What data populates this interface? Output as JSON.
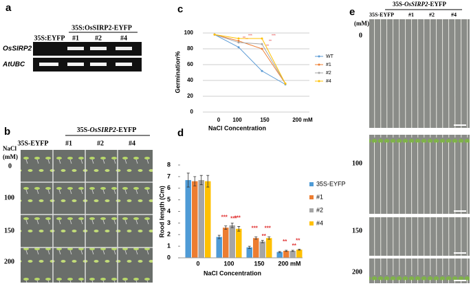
{
  "panels": {
    "a": {
      "label": "a",
      "header": "35S:OsSIRP2-EYFP",
      "lanes": [
        "35S:EYFP",
        "#1",
        "#2",
        "#4"
      ],
      "rows": [
        "OsSIRP2",
        "AtUBC"
      ]
    },
    "b": {
      "label": "b",
      "header": [
        "35S-",
        "OsSIRP2",
        "-EYFP"
      ],
      "columns": [
        "35S-EYFP",
        "#1",
        "#2",
        "#4"
      ],
      "unit": [
        "NaCl",
        "(mM)"
      ],
      "rows": [
        "0",
        "100",
        "150",
        "200"
      ]
    },
    "e": {
      "label": "e",
      "header": [
        "35S-",
        "OsSIRP2",
        "-EYFP"
      ],
      "columns": [
        "35S-EYFP",
        "#1",
        "#2",
        "#4"
      ],
      "unit": "(mM)",
      "rows": [
        "0",
        "100",
        "150",
        "200"
      ]
    }
  },
  "chart_data": [
    {
      "type": "line",
      "panel": "c",
      "x_label": "NaCl Concentration",
      "y_label": "Germination%",
      "categories": [
        "0",
        "100",
        "150",
        "200 mM"
      ],
      "ylim": [
        0,
        100
      ],
      "yticks": [
        0,
        20,
        40,
        60,
        80,
        100
      ],
      "grid": true,
      "series": [
        {
          "name": "WT",
          "color": "#5b9bd5",
          "values": [
            98,
            82,
            52,
            35
          ],
          "significance": [
            null,
            null,
            null,
            null
          ]
        },
        {
          "name": "#1",
          "color": "#ed7d31",
          "values": [
            98,
            90,
            80,
            36
          ],
          "significance": [
            null,
            "**",
            "**",
            null
          ]
        },
        {
          "name": "#2",
          "color": "#a5a5a5",
          "values": [
            98,
            88,
            86,
            36
          ],
          "significance": [
            null,
            "**",
            "**",
            null
          ]
        },
        {
          "name": "#4",
          "color": "#ffc000",
          "values": [
            98,
            93,
            93,
            36
          ],
          "significance": [
            null,
            "***",
            "***",
            null
          ]
        }
      ]
    },
    {
      "type": "bar",
      "panel": "d",
      "x_label": "NaCl Concentration",
      "y_label": "Rood length (Cm)",
      "categories": [
        "0",
        "100",
        "150",
        "200 mM"
      ],
      "ylim": [
        0,
        8
      ],
      "yticks": [
        0,
        1,
        2,
        3,
        4,
        5,
        6,
        7,
        8
      ],
      "grid": false,
      "series": [
        {
          "name": "35S-EYFP",
          "color": "#4f9bd6",
          "values": [
            6.7,
            1.8,
            0.9,
            0.5
          ],
          "errors": [
            0.6,
            0.15,
            0.1,
            0.05
          ],
          "significance": [
            null,
            null,
            null,
            null
          ]
        },
        {
          "name": "#1",
          "color": "#ed7d31",
          "values": [
            6.6,
            2.6,
            1.7,
            0.6
          ],
          "errors": [
            0.4,
            0.15,
            0.1,
            0.05
          ],
          "significance": [
            null,
            "***",
            "***",
            "**"
          ]
        },
        {
          "name": "#2",
          "color": "#a5a5a5",
          "values": [
            6.7,
            2.8,
            1.4,
            0.6
          ],
          "errors": [
            0.4,
            0.2,
            0.1,
            0.05
          ],
          "significance": [
            null,
            "***",
            "**",
            "**"
          ]
        },
        {
          "name": "#4",
          "color": "#ffc000",
          "values": [
            6.6,
            2.5,
            1.7,
            0.7
          ],
          "errors": [
            0.5,
            0.2,
            0.1,
            0.05
          ],
          "significance": [
            null,
            "***",
            "***",
            "**"
          ]
        }
      ]
    }
  ]
}
